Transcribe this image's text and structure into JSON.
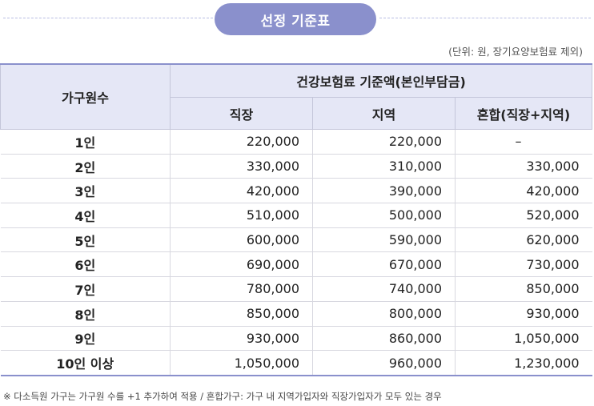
{
  "title": "선정 기준표",
  "unit_note": "(단위: 원, 장기요양보험료 제외)",
  "header": {
    "household": "가구원수",
    "group": "건강보험료 기준액(본인부담금)",
    "col_employee": "직장",
    "col_regional": "지역",
    "col_mixed": "혼합(직장+지역)"
  },
  "rows": [
    {
      "household": "1인",
      "employee": "220,000",
      "regional": "220,000",
      "mixed": "–"
    },
    {
      "household": "2인",
      "employee": "330,000",
      "regional": "310,000",
      "mixed": "330,000"
    },
    {
      "household": "3인",
      "employee": "420,000",
      "regional": "390,000",
      "mixed": "420,000"
    },
    {
      "household": "4인",
      "employee": "510,000",
      "regional": "500,000",
      "mixed": "520,000"
    },
    {
      "household": "5인",
      "employee": "600,000",
      "regional": "590,000",
      "mixed": "620,000"
    },
    {
      "household": "6인",
      "employee": "690,000",
      "regional": "670,000",
      "mixed": "730,000"
    },
    {
      "household": "7인",
      "employee": "780,000",
      "regional": "740,000",
      "mixed": "850,000"
    },
    {
      "household": "8인",
      "employee": "850,000",
      "regional": "800,000",
      "mixed": "930,000"
    },
    {
      "household": "9인",
      "employee": "930,000",
      "regional": "860,000",
      "mixed": "1,050,000"
    },
    {
      "household": "10인 이상",
      "employee": "1,050,000",
      "regional": "960,000",
      "mixed": "1,230,000"
    }
  ],
  "footnote": "※ 다소득원 가구는 가구원 수를 +1 추가하여 적용 / 혼합가구: 가구 내 지역가입자와 직장가입자가 모두 있는 경우",
  "colors": {
    "accent": "#8a90cc",
    "header_bg": "#e5e7f6"
  }
}
